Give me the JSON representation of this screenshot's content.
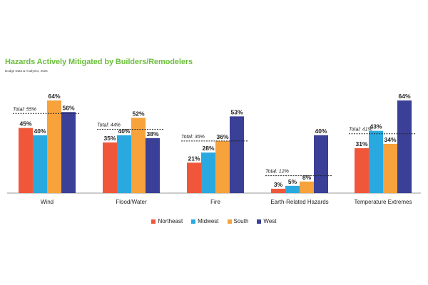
{
  "header": {
    "title": "Hazards Actively Mitigated by Builders/Remodelers",
    "subtitle": "Dodge Data & Analytics, 2024"
  },
  "colors": {
    "title": "#6abf3a",
    "Northeast": "#f0573a",
    "Midwest": "#2aa9e0",
    "South": "#f7a23b",
    "West": "#3a3f97",
    "axis": "#999999",
    "total_line": "#222222"
  },
  "chart_data": {
    "type": "bar",
    "title": "Hazards Actively Mitigated by Builders/Remodelers",
    "subtitle": "Dodge Data & Analytics, 2024",
    "categories": [
      "Wind",
      "Flood/Water",
      "Fire",
      "Earth-Related Hazards",
      "Temperature Extremes"
    ],
    "series": [
      {
        "name": "Northeast",
        "values": [
          45,
          35,
          21,
          3,
          31
        ],
        "labels": [
          "45%",
          "35%",
          "21%",
          "3%",
          "31%"
        ]
      },
      {
        "name": "Midwest",
        "values": [
          40,
          40,
          28,
          5,
          43
        ],
        "labels": [
          "40%",
          "40%",
          "28%",
          "5%",
          "43%"
        ]
      },
      {
        "name": "South",
        "values": [
          64,
          52,
          36,
          8,
          34
        ],
        "labels": [
          "64%",
          "52%",
          "36%",
          "8%",
          "34%"
        ]
      },
      {
        "name": "West",
        "values": [
          56,
          38,
          53,
          40,
          64
        ],
        "labels": [
          "56%",
          "38%",
          "53%",
          "40%",
          "64%"
        ]
      }
    ],
    "totals": [
      55,
      44,
      36,
      12,
      41
    ],
    "total_labels": [
      "Total: 55%",
      "Total: 44%",
      "Total: 36%",
      "Total: 12%",
      "Total: 41%"
    ],
    "ylim": [
      0,
      70
    ],
    "xlabel": "",
    "ylabel": "",
    "grid": false,
    "legend_position": "bottom-center"
  }
}
